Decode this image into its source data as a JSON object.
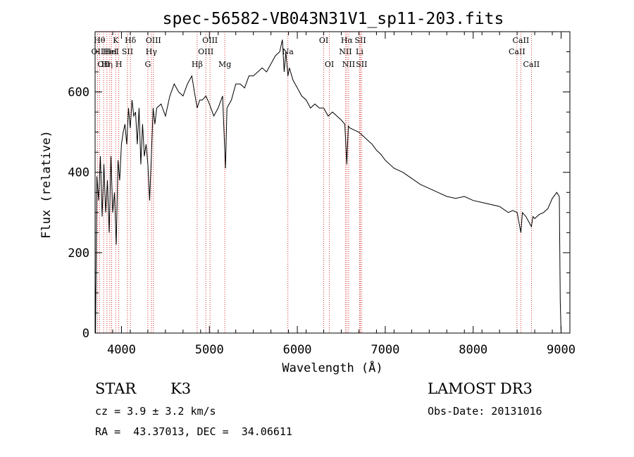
{
  "chart_data": {
    "type": "line",
    "title": "spec-56582-VB043N31V1_sp11-203.fits",
    "xlabel": "Wavelength (Å)",
    "ylabel": "Flux (relative)",
    "xlim": [
      3700,
      9100
    ],
    "ylim": [
      0,
      750
    ],
    "xticks": [
      4000,
      5000,
      6000,
      7000,
      8000,
      9000
    ],
    "yticks": [
      0,
      200,
      400,
      600
    ],
    "xtick_labels": [
      "4000",
      "5000",
      "6000",
      "7000",
      "8000",
      "9000"
    ],
    "ytick_labels": [
      "0",
      "200",
      "400",
      "600"
    ],
    "series": [
      {
        "name": "flux",
        "x": [
          3700,
          3705,
          3720,
          3740,
          3760,
          3780,
          3800,
          3820,
          3840,
          3860,
          3880,
          3900,
          3920,
          3940,
          3960,
          3980,
          4000,
          4020,
          4040,
          4060,
          4080,
          4100,
          4120,
          4140,
          4160,
          4180,
          4200,
          4220,
          4240,
          4260,
          4280,
          4300,
          4320,
          4340,
          4360,
          4380,
          4400,
          4450,
          4500,
          4550,
          4600,
          4650,
          4700,
          4750,
          4800,
          4830,
          4861,
          4890,
          4920,
          4960,
          5000,
          5050,
          5100,
          5150,
          5183,
          5200,
          5250,
          5300,
          5350,
          5400,
          5450,
          5500,
          5550,
          5600,
          5650,
          5700,
          5750,
          5800,
          5830,
          5850,
          5870,
          5893,
          5910,
          5950,
          6000,
          6050,
          6100,
          6150,
          6200,
          6250,
          6300,
          6350,
          6400,
          6450,
          6500,
          6540,
          6563,
          6580,
          6600,
          6650,
          6700,
          6750,
          6800,
          6850,
          6900,
          6950,
          7000,
          7100,
          7200,
          7300,
          7400,
          7500,
          7600,
          7700,
          7800,
          7900,
          8000,
          8100,
          8200,
          8300,
          8400,
          8450,
          8500,
          8542,
          8560,
          8600,
          8662,
          8680,
          8700,
          8750,
          8800,
          8850,
          8900,
          8950,
          8980,
          8990,
          9000
        ],
        "values": [
          130,
          0,
          390,
          330,
          440,
          290,
          420,
          300,
          380,
          250,
          440,
          300,
          350,
          220,
          430,
          380,
          470,
          500,
          520,
          470,
          560,
          510,
          580,
          540,
          550,
          470,
          560,
          420,
          520,
          440,
          470,
          420,
          330,
          440,
          560,
          520,
          560,
          570,
          540,
          590,
          620,
          600,
          590,
          620,
          640,
          600,
          560,
          580,
          580,
          590,
          570,
          540,
          560,
          590,
          410,
          560,
          580,
          620,
          620,
          610,
          640,
          640,
          650,
          660,
          650,
          670,
          690,
          700,
          730,
          650,
          700,
          640,
          660,
          630,
          610,
          590,
          580,
          560,
          570,
          560,
          560,
          540,
          550,
          540,
          530,
          520,
          420,
          515,
          510,
          505,
          500,
          490,
          480,
          470,
          455,
          445,
          430,
          410,
          400,
          385,
          370,
          360,
          350,
          340,
          335,
          340,
          330,
          325,
          320,
          315,
          300,
          305,
          300,
          250,
          300,
          290,
          265,
          290,
          285,
          295,
          300,
          310,
          335,
          350,
          340,
          80,
          0
        ]
      }
    ],
    "line_markers": [
      {
        "wl": 3727,
        "label": "OII",
        "row": 2
      },
      {
        "wl": 3750,
        "label": "Hθ",
        "row": 1
      },
      {
        "wl": 3797,
        "label": "OII",
        "row": 3
      },
      {
        "wl": 3835,
        "label": "Hη",
        "row": 3
      },
      {
        "wl": 3868,
        "label": "HeI",
        "row": 2
      },
      {
        "wl": 3889,
        "label": "HeI",
        "row": 2
      },
      {
        "wl": 3934,
        "label": "K",
        "row": 1
      },
      {
        "wl": 3970,
        "label": "H",
        "row": 3
      },
      {
        "wl": 4068,
        "label": "SII",
        "row": 2
      },
      {
        "wl": 4102,
        "label": "Hδ",
        "row": 1
      },
      {
        "wl": 4300,
        "label": "G",
        "row": 3
      },
      {
        "wl": 4340,
        "label": "Hγ",
        "row": 2
      },
      {
        "wl": 4363,
        "label": "OIII",
        "row": 1
      },
      {
        "wl": 4861,
        "label": "Hβ",
        "row": 3
      },
      {
        "wl": 4959,
        "label": "OIII",
        "row": 2
      },
      {
        "wl": 5007,
        "label": "OIII",
        "row": 1
      },
      {
        "wl": 5175,
        "label": "Mg",
        "row": 3
      },
      {
        "wl": 5893,
        "label": "Na",
        "row": 2
      },
      {
        "wl": 6300,
        "label": "OI",
        "row": 1
      },
      {
        "wl": 6364,
        "label": "OI",
        "row": 3
      },
      {
        "wl": 6548,
        "label": "NII",
        "row": 2
      },
      {
        "wl": 6563,
        "label": "Hα",
        "row": 1
      },
      {
        "wl": 6584,
        "label": "NII",
        "row": 3
      },
      {
        "wl": 6708,
        "label": "Li",
        "row": 2
      },
      {
        "wl": 6717,
        "label": "SII",
        "row": 1
      },
      {
        "wl": 6731,
        "label": "SII",
        "row": 3
      },
      {
        "wl": 8498,
        "label": "CaII",
        "row": 2
      },
      {
        "wl": 8542,
        "label": "CaII",
        "row": 1
      },
      {
        "wl": 8662,
        "label": "CaII",
        "row": 3
      }
    ]
  },
  "info": {
    "object_class": "STAR",
    "subclass": "K3",
    "survey": "LAMOST DR3",
    "cz": "cz = 3.9 ± 3.2 km/s",
    "obs_date": "Obs-Date: 20131016",
    "coords": "RA =  43.37013, DEC =  34.06611"
  },
  "colors": {
    "line_marker": "#cc0000",
    "spectrum": "#000000"
  }
}
